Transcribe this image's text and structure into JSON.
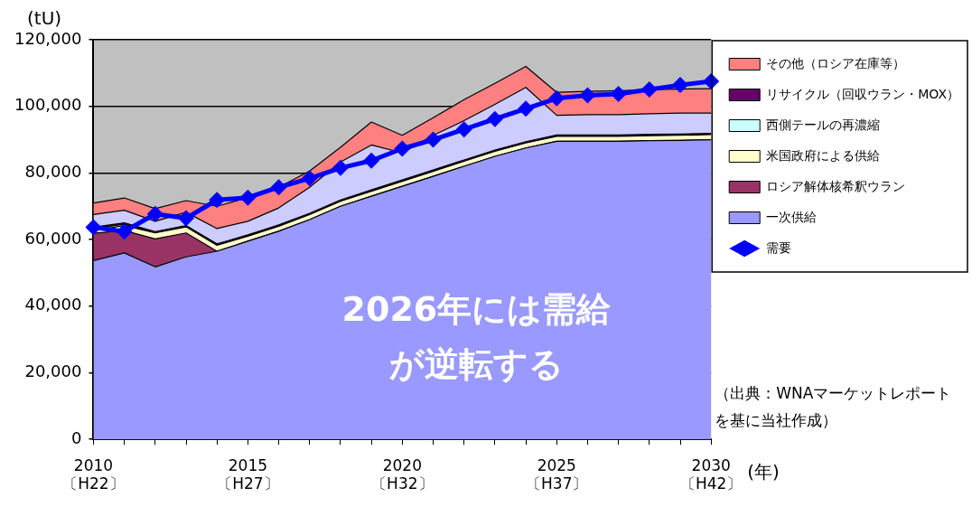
{
  "chart_data": {
    "type": "area",
    "stacked": true,
    "ylabel": "(tU)",
    "xlabel": "(年)",
    "categories": [
      "2010\n〔H22〕",
      null,
      null,
      null,
      null,
      "2015\n〔H27〕",
      null,
      null,
      null,
      null,
      "2020\n〔H32〕",
      null,
      null,
      null,
      null,
      "2025\n〔H37〕",
      null,
      null,
      null,
      null,
      "2030\n〔H42〕"
    ],
    "ylim": [
      0,
      120000
    ],
    "yticks": [
      0,
      {
        "value": 20000,
        "label": "20,000"
      },
      {
        "value": 40000,
        "label": "40,000"
      },
      {
        "value": 60000,
        "label": "60,000"
      },
      {
        "value": 80000,
        "label": "80,000"
      },
      {
        "value": 100000,
        "label": "100,000"
      },
      {
        "value": 120000,
        "label": "120,000"
      }
    ],
    "grid": "y",
    "legend": "right",
    "series": [
      {
        "name": "一次供給",
        "color": "#9999ff",
        "values": [
          53700,
          56000,
          51800,
          54800,
          56500,
          59500,
          62500,
          66000,
          70000,
          73000,
          76000,
          79000,
          82000,
          85000,
          87500,
          89500,
          89500,
          89500,
          89700,
          89800,
          90000
        ]
      },
      {
        "name": "ロシア解体核希釈ウラン",
        "color": "#993366",
        "values": [
          8200,
          6700,
          8400,
          7200,
          0,
          0,
          0,
          0,
          0,
          0,
          0,
          0,
          0,
          0,
          0,
          0,
          0,
          0,
          0,
          0,
          0
        ]
      },
      {
        "name": "米国政府による供給",
        "color": "#ffffcc",
        "values": [
          800,
          1500,
          1800,
          1800,
          1800,
          1500,
          1500,
          1500,
          1500,
          1500,
          1500,
          1500,
          1500,
          1500,
          1500,
          1500,
          1500,
          1500,
          1500,
          1500,
          1500
        ]
      },
      {
        "name": "西側テールの再濃縮",
        "color": "#ccffff",
        "values": [
          600,
          400,
          0,
          0,
          0,
          0,
          0,
          0,
          0,
          0,
          0,
          0,
          0,
          0,
          0,
          0,
          0,
          0,
          0,
          0,
          0
        ]
      },
      {
        "name": "リサイクル（回収ウラン・MOX）",
        "color": "#660066",
        "values": [
          400,
          400,
          400,
          400,
          400,
          400,
          400,
          400,
          400,
          400,
          400,
          400,
          400,
          400,
          400,
          400,
          400,
          400,
          400,
          400,
          400
        ]
      },
      {
        "color": "#ccccff",
        "values": [
          3800,
          3800,
          3100,
          4000,
          4600,
          4100,
          5100,
          7800,
          11400,
          13500,
          8100,
          10400,
          11800,
          13700,
          16300,
          5900,
          6100,
          6100,
          6200,
          6300,
          6100
        ]
      },
      {
        "name": "その他（ロシア在庫等）",
        "color": "#ff8080",
        "values": [
          3500,
          3700,
          3800,
          3500,
          6700,
          7100,
          6200,
          4900,
          4400,
          6900,
          5300,
          5300,
          6300,
          6300,
          6300,
          6900,
          7000,
          7200,
          7200,
          7200,
          7300
        ]
      },
      {
        "name": "需要",
        "type": "line",
        "color": "#0000ff",
        "marker": "diamond",
        "values": [
          63700,
          62400,
          67700,
          66400,
          71900,
          72600,
          75700,
          78400,
          81500,
          83700,
          87300,
          90000,
          93100,
          96200,
          99300,
          102400,
          103300,
          103700,
          105100,
          106400,
          107500
        ]
      }
    ],
    "annotations": [
      "2026年には需給が逆転する",
      "（出典：WNAマーケットレポートを基に当社作成）"
    ]
  }
}
